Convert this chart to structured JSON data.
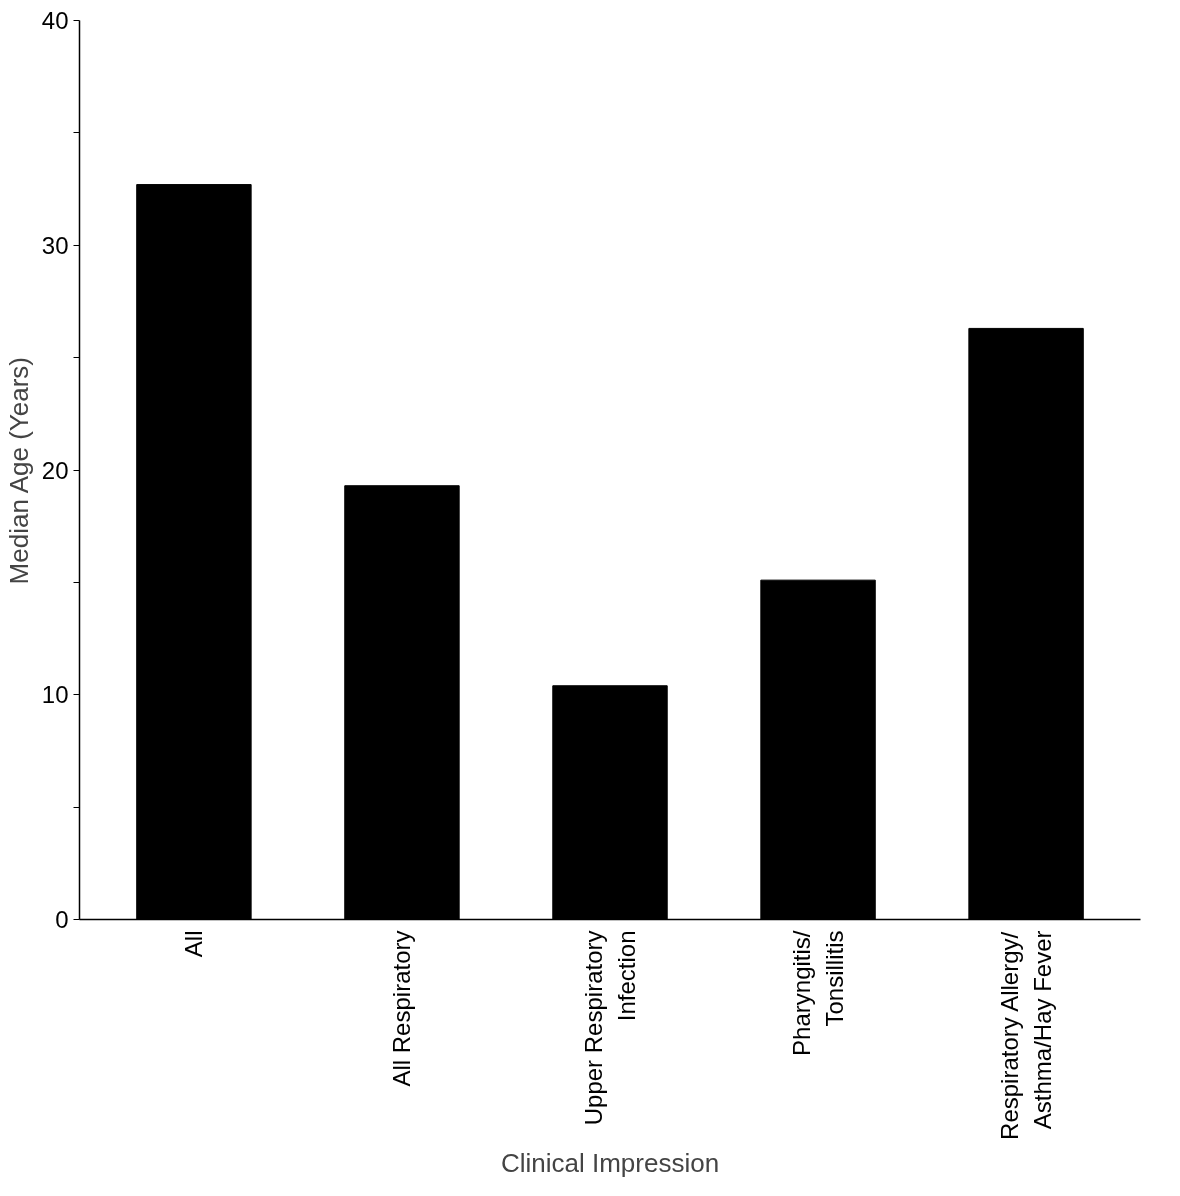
{
  "chart_data": {
    "type": "bar",
    "xlabel": "Clinical Impression",
    "ylabel": "Median Age (Years)",
    "categories": [
      "All",
      "All Respiratory",
      "Upper Respiratory\nInfection",
      "Pharyngitis/\nTonsillitis",
      "Respiratory Allergy/\nAsthma/Hay Fever"
    ],
    "values": [
      32.7,
      19.3,
      10.4,
      15.1,
      26.3
    ],
    "color": "#000000",
    "ylim": [
      0,
      40
    ],
    "yticks": [
      0,
      {
        "value": 5,
        "label": null
      },
      10,
      {
        "value": 15,
        "label": null
      },
      20,
      {
        "value": 25,
        "label": null
      },
      30,
      {
        "value": 35,
        "label": null
      },
      40
    ],
    "grid": false
  }
}
